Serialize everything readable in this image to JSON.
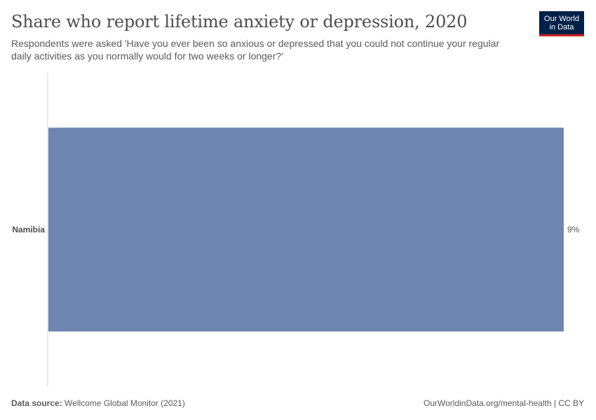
{
  "header": {
    "title": "Share who report lifetime anxiety or depression, 2020",
    "subtitle": "Respondents were asked 'Have you ever been so anxious or depressed that you could not continue your regular daily activities as you normally would for two weeks or longer?'",
    "logo_line1": "Our World",
    "logo_line2": "in Data"
  },
  "footer": {
    "source_label": "Data source:",
    "source_text": "Wellcome Global Monitor (2021)",
    "url_text": "OurWorldinData.org/mental-health | CC BY"
  },
  "colors": {
    "bar": "#6f87b0",
    "axis": "#d3d3d3",
    "logo_bg": "#002147",
    "logo_accent": "#ce261e"
  },
  "chart_data": {
    "type": "bar",
    "orientation": "horizontal",
    "categories": [
      "Namibia"
    ],
    "values": [
      9
    ],
    "value_labels": [
      "9%"
    ],
    "xlim": [
      0,
      9
    ],
    "grid": false,
    "legend": "none"
  }
}
